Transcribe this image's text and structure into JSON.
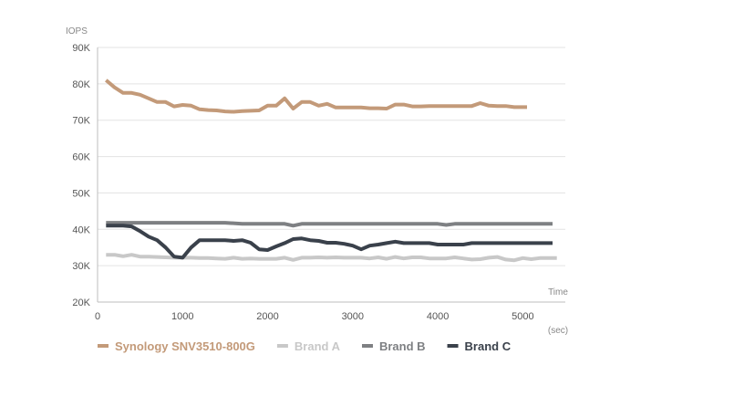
{
  "chart_data": {
    "type": "line",
    "ylabel": "IOPS",
    "xlabel": "Time",
    "xlabel_unit": "(sec)",
    "xlim": [
      0,
      5500
    ],
    "ylim": [
      20000,
      90000
    ],
    "x_ticks": [
      {
        "value": 0,
        "label": "0"
      },
      {
        "value": 1000,
        "label": "1000"
      },
      {
        "value": 2000,
        "label": "2000"
      },
      {
        "value": 3000,
        "label": "3000"
      },
      {
        "value": 4000,
        "label": "4000"
      },
      {
        "value": 5000,
        "label": "5000"
      }
    ],
    "y_ticks": [
      {
        "value": 20000,
        "label": "20K"
      },
      {
        "value": 30000,
        "label": "30K"
      },
      {
        "value": 40000,
        "label": "40K"
      },
      {
        "value": 50000,
        "label": "50K"
      },
      {
        "value": 60000,
        "label": "60K"
      },
      {
        "value": 70000,
        "label": "70K"
      },
      {
        "value": 80000,
        "label": "80K"
      },
      {
        "value": 90000,
        "label": "90K"
      }
    ],
    "grid": "horizontal",
    "legend_position": "bottom",
    "series": [
      {
        "name": "Synology SNV3510-800G",
        "color": "#c39a79",
        "points": [
          [
            100,
            81000
          ],
          [
            200,
            79000
          ],
          [
            300,
            77500
          ],
          [
            400,
            77500
          ],
          [
            500,
            77000
          ],
          [
            600,
            76000
          ],
          [
            700,
            75000
          ],
          [
            800,
            75000
          ],
          [
            900,
            73800
          ],
          [
            1000,
            74200
          ],
          [
            1100,
            74000
          ],
          [
            1200,
            73000
          ],
          [
            1300,
            72800
          ],
          [
            1400,
            72700
          ],
          [
            1500,
            72400
          ],
          [
            1600,
            72300
          ],
          [
            1700,
            72500
          ],
          [
            1800,
            72600
          ],
          [
            1900,
            72700
          ],
          [
            2000,
            74000
          ],
          [
            2100,
            74000
          ],
          [
            2200,
            76000
          ],
          [
            2300,
            73200
          ],
          [
            2400,
            75000
          ],
          [
            2500,
            75000
          ],
          [
            2600,
            74000
          ],
          [
            2700,
            74500
          ],
          [
            2800,
            73500
          ],
          [
            2900,
            73500
          ],
          [
            3000,
            73500
          ],
          [
            3100,
            73500
          ],
          [
            3200,
            73300
          ],
          [
            3300,
            73300
          ],
          [
            3400,
            73200
          ],
          [
            3500,
            74300
          ],
          [
            3600,
            74300
          ],
          [
            3700,
            73800
          ],
          [
            3800,
            73800
          ],
          [
            3900,
            73900
          ],
          [
            4000,
            73900
          ],
          [
            4100,
            73900
          ],
          [
            4200,
            73900
          ],
          [
            4300,
            73900
          ],
          [
            4400,
            73900
          ],
          [
            4500,
            74700
          ],
          [
            4600,
            74000
          ],
          [
            4700,
            73900
          ],
          [
            4800,
            73900
          ],
          [
            4900,
            73600
          ],
          [
            5000,
            73600
          ],
          [
            5050,
            73600
          ]
        ]
      },
      {
        "name": "Brand A",
        "color": "#c8c8c8",
        "points": [
          [
            100,
            33000
          ],
          [
            200,
            33000
          ],
          [
            300,
            32600
          ],
          [
            400,
            33000
          ],
          [
            500,
            32500
          ],
          [
            600,
            32500
          ],
          [
            700,
            32400
          ],
          [
            800,
            32300
          ],
          [
            900,
            32200
          ],
          [
            1000,
            32200
          ],
          [
            1100,
            32200
          ],
          [
            1200,
            32100
          ],
          [
            1300,
            32100
          ],
          [
            1400,
            32000
          ],
          [
            1500,
            31900
          ],
          [
            1600,
            32200
          ],
          [
            1700,
            31900
          ],
          [
            1800,
            32000
          ],
          [
            1900,
            31900
          ],
          [
            2000,
            31900
          ],
          [
            2100,
            31900
          ],
          [
            2200,
            32200
          ],
          [
            2300,
            31600
          ],
          [
            2400,
            32200
          ],
          [
            2500,
            32200
          ],
          [
            2600,
            32300
          ],
          [
            2700,
            32200
          ],
          [
            2800,
            32300
          ],
          [
            2900,
            32200
          ],
          [
            3000,
            32200
          ],
          [
            3100,
            32200
          ],
          [
            3200,
            32000
          ],
          [
            3300,
            32300
          ],
          [
            3400,
            31900
          ],
          [
            3500,
            32400
          ],
          [
            3600,
            32000
          ],
          [
            3700,
            32300
          ],
          [
            3800,
            32300
          ],
          [
            3900,
            32000
          ],
          [
            4000,
            32000
          ],
          [
            4100,
            32000
          ],
          [
            4200,
            32300
          ],
          [
            4300,
            32000
          ],
          [
            4400,
            31700
          ],
          [
            4500,
            31800
          ],
          [
            4600,
            32200
          ],
          [
            4700,
            32400
          ],
          [
            4800,
            31700
          ],
          [
            4900,
            31500
          ],
          [
            5000,
            32100
          ],
          [
            5100,
            31800
          ],
          [
            5200,
            32100
          ],
          [
            5300,
            32100
          ],
          [
            5400,
            32100
          ]
        ]
      },
      {
        "name": "Brand B",
        "color": "#7e8083",
        "points": [
          [
            100,
            41800
          ],
          [
            500,
            41800
          ],
          [
            1000,
            41800
          ],
          [
            1500,
            41800
          ],
          [
            1700,
            41500
          ],
          [
            2000,
            41500
          ],
          [
            2200,
            41500
          ],
          [
            2300,
            41000
          ],
          [
            2400,
            41500
          ],
          [
            2700,
            41500
          ],
          [
            3000,
            41500
          ],
          [
            3500,
            41500
          ],
          [
            3900,
            41500
          ],
          [
            4000,
            41500
          ],
          [
            4100,
            41200
          ],
          [
            4200,
            41500
          ],
          [
            4500,
            41500
          ],
          [
            5000,
            41500
          ],
          [
            5350,
            41500
          ]
        ]
      },
      {
        "name": "Brand C",
        "color": "#3a414b",
        "points": [
          [
            100,
            41000
          ],
          [
            200,
            41000
          ],
          [
            300,
            41000
          ],
          [
            400,
            40800
          ],
          [
            500,
            39500
          ],
          [
            600,
            38000
          ],
          [
            700,
            37000
          ],
          [
            800,
            35000
          ],
          [
            900,
            32500
          ],
          [
            1000,
            32200
          ],
          [
            1100,
            35000
          ],
          [
            1200,
            37000
          ],
          [
            1300,
            37000
          ],
          [
            1400,
            37000
          ],
          [
            1500,
            37000
          ],
          [
            1600,
            36800
          ],
          [
            1700,
            37000
          ],
          [
            1800,
            36300
          ],
          [
            1900,
            34500
          ],
          [
            2000,
            34300
          ],
          [
            2100,
            35300
          ],
          [
            2200,
            36200
          ],
          [
            2300,
            37300
          ],
          [
            2400,
            37500
          ],
          [
            2500,
            37000
          ],
          [
            2600,
            36800
          ],
          [
            2700,
            36300
          ],
          [
            2800,
            36300
          ],
          [
            2900,
            36000
          ],
          [
            3000,
            35500
          ],
          [
            3100,
            34500
          ],
          [
            3200,
            35500
          ],
          [
            3300,
            35800
          ],
          [
            3400,
            36200
          ],
          [
            3500,
            36600
          ],
          [
            3600,
            36200
          ],
          [
            3700,
            36200
          ],
          [
            3800,
            36200
          ],
          [
            3900,
            36200
          ],
          [
            4000,
            35800
          ],
          [
            4100,
            35800
          ],
          [
            4200,
            35800
          ],
          [
            4300,
            35800
          ],
          [
            4400,
            36200
          ],
          [
            4500,
            36200
          ],
          [
            4600,
            36200
          ],
          [
            4700,
            36200
          ],
          [
            4800,
            36200
          ],
          [
            4900,
            36200
          ],
          [
            5000,
            36200
          ],
          [
            5100,
            36200
          ],
          [
            5200,
            36200
          ],
          [
            5350,
            36200
          ]
        ]
      }
    ]
  }
}
